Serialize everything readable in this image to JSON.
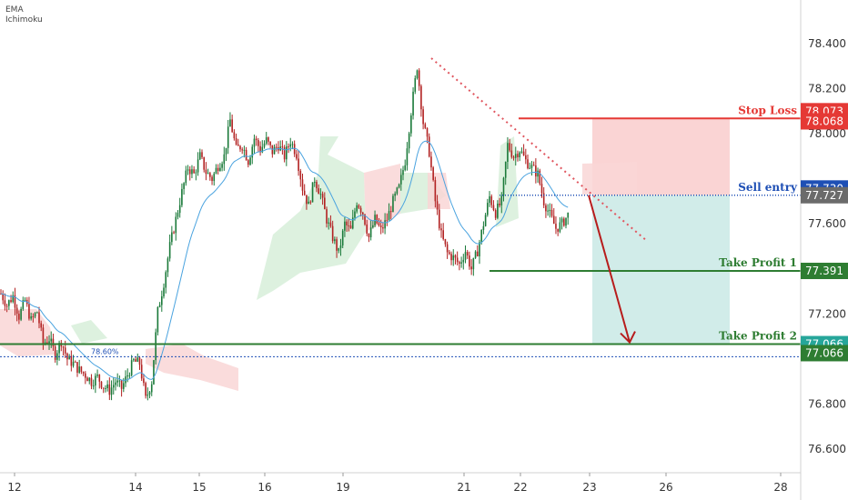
{
  "indicators": [
    "EMA",
    "Ichimoku"
  ],
  "colors": {
    "up": "#26a69a",
    "down": "#ef5350",
    "candle_up": "#1b7a3a",
    "candle_down": "#b22222",
    "ema": "#4aa3df",
    "stop": "#e53935",
    "sell": "#1e4fb5",
    "tp": "#2e7d32",
    "arrow": "#b71c1c",
    "risk_zone": "#f8c6c6",
    "reward_zone": "#c9e9e5",
    "cloud_green": "#d7eed9",
    "cloud_red": "#f9d6d6"
  },
  "chart_data": {
    "type": "candlestick",
    "title": "",
    "ylim": [
      76.5,
      78.55
    ],
    "y_ticks": [
      "78.400",
      "78.200",
      "78.000",
      "77.600",
      "77.200",
      "76.800",
      "76.600"
    ],
    "x_ticks": [
      "12",
      "14",
      "15",
      "16",
      "19",
      "21",
      "22",
      "23",
      "26",
      "28"
    ],
    "series": [
      {
        "name": "price",
        "points": [
          [
            0,
            77.29
          ],
          [
            3,
            77.24
          ],
          [
            6,
            77.28
          ],
          [
            9,
            77.19
          ],
          [
            12,
            77.26
          ],
          [
            15,
            77.17
          ],
          [
            18,
            77.21
          ],
          [
            21,
            77.07
          ],
          [
            24,
            77.09
          ],
          [
            27,
            77.02
          ],
          [
            30,
            77.08
          ],
          [
            33,
            77.0
          ],
          [
            36,
            76.98
          ],
          [
            39,
            76.95
          ],
          [
            42,
            76.93
          ],
          [
            45,
            76.9
          ],
          [
            48,
            76.92
          ],
          [
            51,
            76.88
          ],
          [
            54,
            76.86
          ],
          [
            57,
            76.9
          ],
          [
            60,
            76.87
          ],
          [
            63,
            76.93
          ],
          [
            66,
            76.99
          ],
          [
            69,
            76.98
          ],
          [
            72,
            76.82
          ],
          [
            75,
            76.9
          ],
          [
            78,
            77.21
          ],
          [
            81,
            77.34
          ],
          [
            84,
            77.5
          ],
          [
            87,
            77.62
          ],
          [
            90,
            77.74
          ],
          [
            93,
            77.85
          ],
          [
            96,
            77.82
          ],
          [
            99,
            77.9
          ],
          [
            102,
            77.83
          ],
          [
            105,
            77.8
          ],
          [
            108,
            77.86
          ],
          [
            111,
            77.9
          ],
          [
            114,
            78.06
          ],
          [
            117,
            77.93
          ],
          [
            120,
            77.95
          ],
          [
            123,
            77.88
          ],
          [
            126,
            77.98
          ],
          [
            129,
            77.93
          ],
          [
            132,
            77.97
          ],
          [
            135,
            77.92
          ],
          [
            138,
            77.95
          ],
          [
            141,
            77.9
          ],
          [
            144,
            77.97
          ],
          [
            147,
            77.91
          ],
          [
            150,
            77.76
          ],
          [
            153,
            77.68
          ],
          [
            156,
            77.8
          ],
          [
            159,
            77.73
          ],
          [
            162,
            77.62
          ],
          [
            165,
            77.54
          ],
          [
            168,
            77.47
          ],
          [
            171,
            77.6
          ],
          [
            174,
            77.57
          ],
          [
            177,
            77.7
          ],
          [
            180,
            77.65
          ],
          [
            183,
            77.54
          ],
          [
            186,
            77.62
          ],
          [
            189,
            77.57
          ],
          [
            192,
            77.62
          ],
          [
            195,
            77.7
          ],
          [
            198,
            77.76
          ],
          [
            201,
            77.88
          ],
          [
            204,
            78.1
          ],
          [
            207,
            78.3
          ],
          [
            210,
            78.05
          ],
          [
            213,
            77.92
          ],
          [
            216,
            77.7
          ],
          [
            219,
            77.55
          ],
          [
            222,
            77.47
          ],
          [
            225,
            77.45
          ],
          [
            228,
            77.42
          ],
          [
            231,
            77.48
          ],
          [
            234,
            77.4
          ],
          [
            237,
            77.48
          ],
          [
            240,
            77.6
          ],
          [
            243,
            77.72
          ],
          [
            246,
            77.65
          ],
          [
            249,
            77.7
          ],
          [
            252,
            77.95
          ],
          [
            255,
            77.9
          ],
          [
            258,
            77.93
          ],
          [
            261,
            77.88
          ],
          [
            264,
            77.85
          ],
          [
            267,
            77.82
          ],
          [
            270,
            77.7
          ],
          [
            273,
            77.64
          ],
          [
            276,
            77.58
          ],
          [
            279,
            77.6
          ],
          [
            282,
            77.64
          ]
        ]
      },
      {
        "name": "EMA"
      }
    ],
    "levels": [
      {
        "label": "Stop Loss",
        "tag_top": "78.073",
        "tag": "78.068",
        "value": 78.068
      },
      {
        "label": "Sell entry",
        "tag_top": "77.730",
        "tag": "77.727",
        "value": 77.727
      },
      {
        "label": "Take Profit 1",
        "tag": "77.391",
        "value": 77.391
      },
      {
        "label": "Take Profit 2",
        "tag": "77.066",
        "value": 77.066
      }
    ],
    "fib_label": "78.60%",
    "fib_value": 77.01
  }
}
